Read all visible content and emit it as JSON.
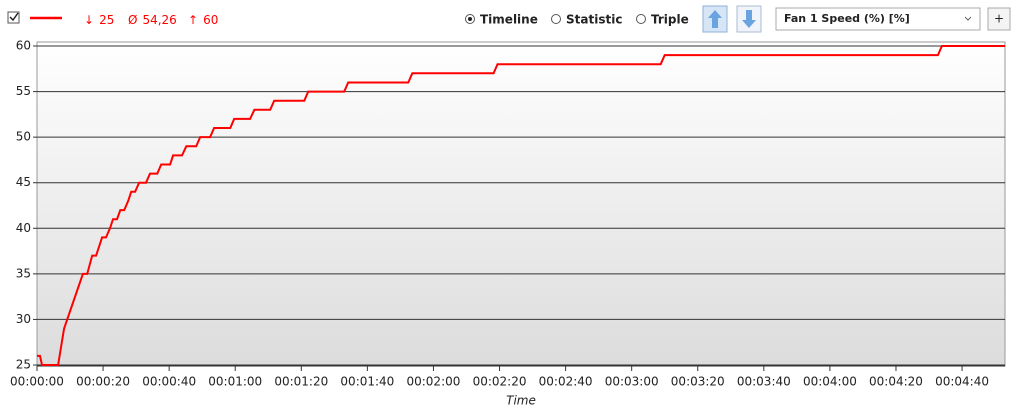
{
  "stats": [
    {
      "symbol": "↓",
      "value": 25
    },
    {
      "symbol": "Ø",
      "value": 54.26,
      "label": "54,26"
    },
    {
      "symbol": "↑",
      "value": 60
    }
  ],
  "views": [
    "Timeline",
    "Statistic",
    "Triple"
  ],
  "selected_view": 0,
  "add_button": "+",
  "chart_data": {
    "type": "line",
    "x_label": "Time",
    "x": [
      0,
      0.9,
      1.5,
      6.4,
      8.2,
      13.9,
      15.2,
      16.7,
      17.9,
      19.7,
      20.9,
      22.1,
      23,
      24.2,
      25.2,
      26.4,
      27.6,
      28.5,
      29.7,
      30.9,
      33,
      34.2,
      36.4,
      37.6,
      40.3,
      41.2,
      43.9,
      45.2,
      48.2,
      49.4,
      52.4,
      53.6,
      58.5,
      59.7,
      64.5,
      65.8,
      70.6,
      71.8,
      80.9,
      82.1,
      93,
      94.2,
      112.4,
      113.6,
      138.2,
      139.4,
      188.8,
      190,
      272.7,
      273.9,
      293
    ],
    "series": [
      {
        "name": "Fan 1 Speed (%) [%]",
        "color": "#ff0000",
        "values": [
          26,
          26,
          25,
          25,
          29,
          35,
          35,
          37,
          37,
          39,
          39,
          40,
          41,
          41,
          42,
          42,
          43,
          44,
          44,
          45,
          45,
          46,
          46,
          47,
          47,
          48,
          48,
          49,
          49,
          50,
          50,
          51,
          51,
          52,
          52,
          53,
          53,
          54,
          54,
          55,
          55,
          56,
          56,
          57,
          57,
          58,
          58,
          59,
          59,
          60,
          60
        ]
      }
    ],
    "xlim": [
      0,
      293
    ],
    "xticks": [
      {
        "value": 0,
        "label": "00:00:00"
      },
      {
        "value": 20,
        "label": "00:00:20"
      },
      {
        "value": 40,
        "label": "00:00:40"
      },
      {
        "value": 60,
        "label": "00:01:00"
      },
      {
        "value": 80,
        "label": "00:01:20"
      },
      {
        "value": 100,
        "label": "00:01:40"
      },
      {
        "value": 120,
        "label": "00:02:00"
      },
      {
        "value": 140,
        "label": "00:02:20"
      },
      {
        "value": 160,
        "label": "00:02:40"
      },
      {
        "value": 180,
        "label": "00:03:00"
      },
      {
        "value": 200,
        "label": "00:03:20"
      },
      {
        "value": 220,
        "label": "00:03:40"
      },
      {
        "value": 240,
        "label": "00:04:00"
      },
      {
        "value": 260,
        "label": "00:04:20"
      },
      {
        "value": 280,
        "label": "00:04:40"
      }
    ],
    "ylim": [
      25,
      60
    ],
    "yticks": [
      25,
      30,
      35,
      40,
      45,
      50,
      55,
      60
    ],
    "grid": true
  }
}
